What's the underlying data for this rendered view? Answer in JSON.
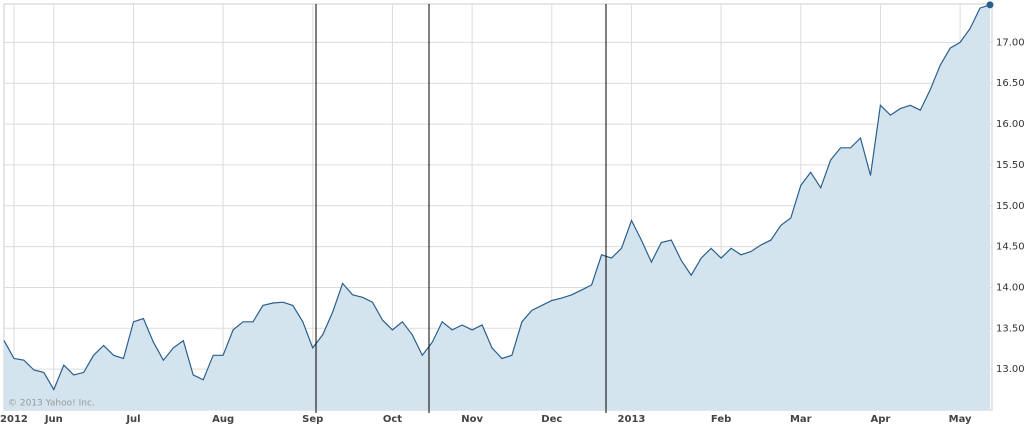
{
  "chart_data": {
    "type": "area-line",
    "categories": [
      null,
      "2012",
      null,
      null,
      null,
      "Jun",
      null,
      null,
      null,
      null,
      null,
      null,
      null,
      "Jul",
      null,
      null,
      null,
      null,
      null,
      null,
      null,
      null,
      "Aug",
      null,
      null,
      null,
      null,
      null,
      null,
      null,
      null,
      "Sep",
      null,
      null,
      null,
      null,
      null,
      null,
      null,
      "Oct",
      null,
      null,
      null,
      null,
      null,
      null,
      null,
      "Nov",
      null,
      null,
      null,
      null,
      null,
      null,
      null,
      "Dec",
      null,
      null,
      null,
      null,
      null,
      null,
      null,
      "2013",
      null,
      null,
      null,
      null,
      null,
      null,
      null,
      null,
      "Feb",
      null,
      null,
      null,
      null,
      null,
      null,
      null,
      "Mar",
      null,
      null,
      null,
      null,
      null,
      null,
      null,
      "Apr",
      null,
      null,
      null,
      null,
      null,
      null,
      null,
      "May",
      null,
      null,
      null
    ],
    "values": [
      13.35,
      13.13,
      13.11,
      12.99,
      12.96,
      12.75,
      13.05,
      12.93,
      12.96,
      13.17,
      13.29,
      13.17,
      13.13,
      13.58,
      13.62,
      13.33,
      13.11,
      13.26,
      13.35,
      12.93,
      12.87,
      13.17,
      13.17,
      13.48,
      13.58,
      13.58,
      13.78,
      13.81,
      13.82,
      13.78,
      13.58,
      13.26,
      13.42,
      13.7,
      14.05,
      13.91,
      13.88,
      13.82,
      13.6,
      13.48,
      13.58,
      13.42,
      13.17,
      13.33,
      13.58,
      13.48,
      13.54,
      13.48,
      13.54,
      13.26,
      13.13,
      13.17,
      13.58,
      13.72,
      13.78,
      13.84,
      13.87,
      13.91,
      13.97,
      14.03,
      14.4,
      14.36,
      14.48,
      14.82,
      14.58,
      14.31,
      14.55,
      14.58,
      14.33,
      14.15,
      14.36,
      14.48,
      14.36,
      14.48,
      14.4,
      14.44,
      14.52,
      14.58,
      14.76,
      14.85,
      15.25,
      15.41,
      15.22,
      15.56,
      15.71,
      15.71,
      15.83,
      15.37,
      16.23,
      16.11,
      16.19,
      16.23,
      16.17,
      16.42,
      16.72,
      16.93,
      17.0,
      17.17,
      17.42,
      17.46
    ],
    "line_color": "#2b5f8e",
    "fill_color": "#d4e4ef",
    "ylim": [
      12.5,
      17.47
    ],
    "yticks": [
      {
        "value": 13,
        "label": "13.00"
      },
      {
        "value": 13.5,
        "label": "13.50"
      },
      {
        "value": 14,
        "label": "14.00"
      },
      {
        "value": 14.5,
        "label": "14.50"
      },
      {
        "value": 15,
        "label": "15.00"
      },
      {
        "value": 15.5,
        "label": "15.50"
      },
      {
        "value": 16,
        "label": "16.00"
      },
      {
        "value": 16.5,
        "label": "16.50"
      },
      {
        "value": 17,
        "label": "17.00"
      }
    ],
    "grid": true,
    "watermark": "© 2013 Yahoo! Inc."
  }
}
